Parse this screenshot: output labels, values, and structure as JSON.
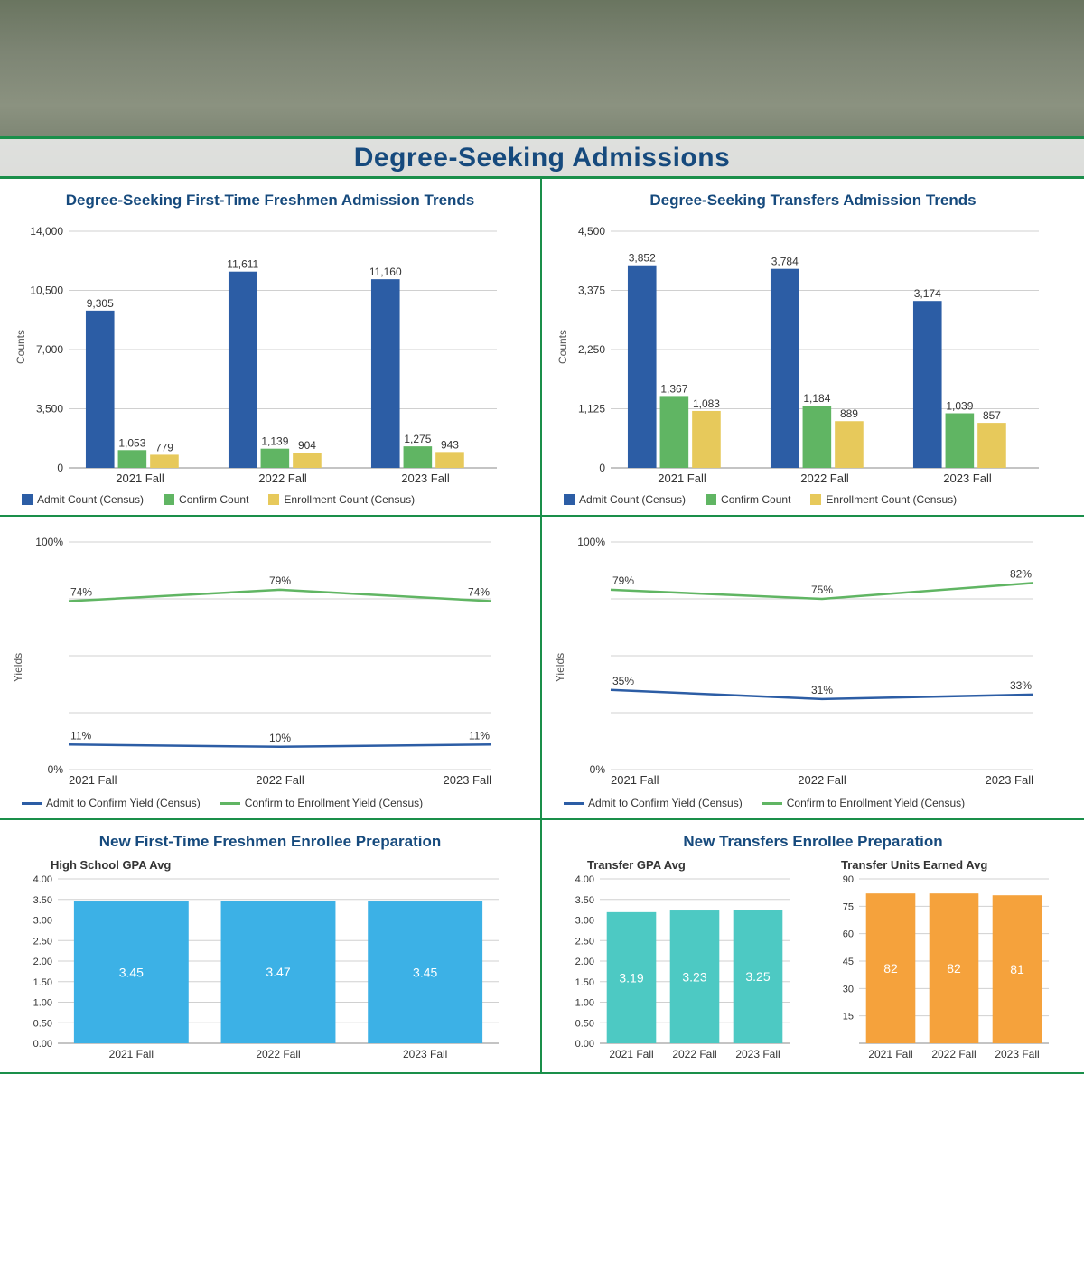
{
  "banner_title": "Degree-Seeking Admissions",
  "banner_border_color": "#1a8f4a",
  "banner_title_color": "#164a7d",
  "categories": [
    "2021 Fall",
    "2022 Fall",
    "2023 Fall"
  ],
  "bar_legend": {
    "admit": "Admit Count (Census)",
    "confirm": "Confirm Count",
    "enroll": "Enrollment Count (Census)"
  },
  "line_legend": {
    "admit_confirm": "Admit to Confirm Yield (Census)",
    "confirm_enroll": "Confirm to Enrollment Yield (Census)"
  },
  "colors": {
    "admit": "#2c5da5",
    "confirm": "#60b563",
    "enroll": "#e7c95b",
    "line_blue": "#2c5da5",
    "line_green": "#60b563",
    "grid": "#d0d0d0",
    "axis_text": "#555555",
    "tick_text": "#333333",
    "title": "#164a7d",
    "gpa_bar": "#3cb1e6",
    "transfer_gpa_bar": "#4dc9c3",
    "transfer_units_bar": "#f5a23c",
    "bar_value_label": "#333333",
    "bar_value_label_inner": "#ffffff"
  },
  "freshmen_bars": {
    "title": "Degree-Seeking First-Time Freshmen Admission Trends",
    "y_axis_label": "Counts",
    "ymax": 14000,
    "yticks": [
      0,
      3500,
      7000,
      10500,
      14000
    ],
    "ytick_labels": [
      "0",
      "3,500",
      "7,000",
      "10,500",
      "14,000"
    ],
    "admit": [
      9305,
      11611,
      11160
    ],
    "confirm": [
      1053,
      1139,
      1275
    ],
    "enroll": [
      779,
      904,
      943
    ],
    "admit_labels": [
      "9,305",
      "11,611",
      "11,160"
    ],
    "confirm_labels": [
      "1,053",
      "1,139",
      "1,275"
    ],
    "enroll_labels": [
      "779",
      "904",
      "943"
    ]
  },
  "transfers_bars": {
    "title": "Degree-Seeking Transfers Admission Trends",
    "y_axis_label": "Counts",
    "ymax": 4500,
    "yticks": [
      0,
      1125,
      2250,
      3375,
      4500
    ],
    "ytick_labels": [
      "0",
      "1,125",
      "2,250",
      "3,375",
      "4,500"
    ],
    "admit": [
      3852,
      3784,
      3174
    ],
    "confirm": [
      1367,
      1184,
      1039
    ],
    "enroll": [
      1083,
      889,
      857
    ],
    "admit_labels": [
      "3,852",
      "3,784",
      "3,174"
    ],
    "confirm_labels": [
      "1,367",
      "1,184",
      "1,039"
    ],
    "enroll_labels": [
      "1,083",
      "889",
      "857"
    ]
  },
  "freshmen_yields": {
    "y_axis_label": "Yields",
    "ymax": 100,
    "yticks": [
      0,
      100
    ],
    "ytick_labels": [
      "0%",
      "100%"
    ],
    "confirm_enroll": [
      74,
      79,
      74
    ],
    "admit_confirm": [
      11,
      10,
      11
    ],
    "confirm_enroll_labels": [
      "74%",
      "79%",
      "74%"
    ],
    "admit_confirm_labels": [
      "11%",
      "10%",
      "11%"
    ]
  },
  "transfers_yields": {
    "y_axis_label": "Yields",
    "ymax": 100,
    "yticks": [
      0,
      100
    ],
    "ytick_labels": [
      "0%",
      "100%"
    ],
    "confirm_enroll": [
      79,
      75,
      82
    ],
    "admit_confirm": [
      35,
      31,
      33
    ],
    "confirm_enroll_labels": [
      "79%",
      "75%",
      "82%"
    ],
    "admit_confirm_labels": [
      "35%",
      "31%",
      "33%"
    ]
  },
  "freshmen_prep": {
    "title": "New First-Time Freshmen Enrollee Preparation",
    "sub_label": "High School GPA Avg",
    "ymax": 4.0,
    "yticks": [
      0,
      0.5,
      1.0,
      1.5,
      2.0,
      2.5,
      3.0,
      3.5,
      4.0
    ],
    "ytick_labels": [
      "0.00",
      "0.50",
      "1.00",
      "1.50",
      "2.00",
      "2.50",
      "3.00",
      "3.50",
      "4.00"
    ],
    "values": [
      3.45,
      3.47,
      3.45
    ],
    "value_labels": [
      "3.45",
      "3.47",
      "3.45"
    ]
  },
  "transfers_prep": {
    "title": "New Transfers Enrollee Preparation",
    "gpa": {
      "sub_label": "Transfer GPA Avg",
      "ymax": 4.0,
      "yticks": [
        0,
        0.5,
        1.0,
        1.5,
        2.0,
        2.5,
        3.0,
        3.5,
        4.0
      ],
      "ytick_labels": [
        "0.00",
        "0.50",
        "1.00",
        "1.50",
        "2.00",
        "2.50",
        "3.00",
        "3.50",
        "4.00"
      ],
      "values": [
        3.19,
        3.23,
        3.25
      ],
      "value_labels": [
        "3.19",
        "3.23",
        "3.25"
      ]
    },
    "units": {
      "sub_label": "Transfer Units Earned Avg",
      "ymax": 90,
      "yticks": [
        0,
        15,
        30,
        45,
        60,
        75,
        90
      ],
      "ytick_labels": [
        "",
        "15",
        "30",
        "45",
        "60",
        "75",
        "90"
      ],
      "values": [
        82,
        82,
        81
      ],
      "value_labels": [
        "82",
        "82",
        "81"
      ]
    }
  }
}
